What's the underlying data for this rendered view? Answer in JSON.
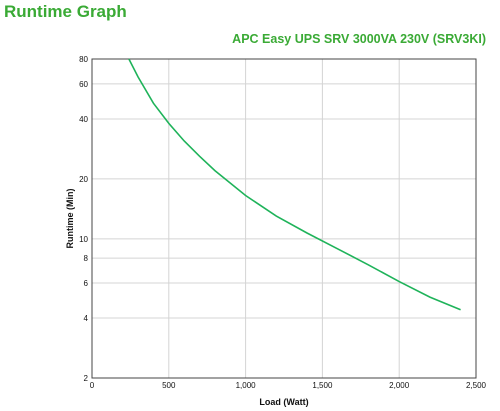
{
  "header": {
    "title": "Runtime Graph"
  },
  "chart_data": {
    "type": "line",
    "subtitle": "APC Easy UPS SRV 3000VA 230V (SRV3KI)",
    "xlabel": "Load (Watt)",
    "ylabel": "Runtime (Min)",
    "xlim": [
      0,
      2500
    ],
    "ylim": [
      2,
      80
    ],
    "yscale": "log",
    "grid": true,
    "line_color": "#1fb35a",
    "x_ticks": [
      0,
      500,
      1000,
      1500,
      2000,
      2500
    ],
    "x_tick_labels": [
      "0",
      "500",
      "1,000",
      "1,500",
      "2,000",
      "2,500"
    ],
    "y_ticks": [
      2,
      4,
      6,
      8,
      10,
      20,
      40,
      60,
      80
    ],
    "y_tick_labels": [
      "2",
      "4",
      "6",
      "8",
      "10",
      "20",
      "40",
      "60",
      "80"
    ],
    "series": [
      {
        "x": [
          240,
          300,
          400,
          500,
          600,
          700,
          800,
          1000,
          1200,
          1400,
          1600,
          1800,
          2000,
          2200,
          2400
        ],
        "y": [
          80,
          65,
          48,
          38,
          31,
          26,
          22,
          16.5,
          13,
          10.7,
          8.9,
          7.4,
          6.1,
          5.1,
          4.4
        ]
      }
    ]
  }
}
